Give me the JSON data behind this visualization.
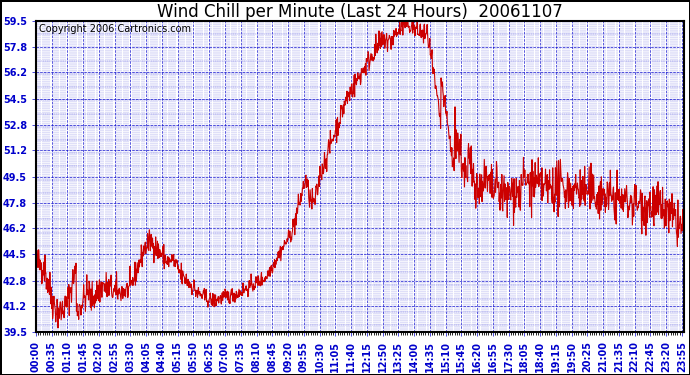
{
  "title": "Wind Chill per Minute (Last 24 Hours)  20061107",
  "copyright_text": "Copyright 2006 Cartronics.com",
  "line_color": "#cc0000",
  "background_color": "#ffffff",
  "plot_bg_color": "#ffffff",
  "border_color": "#000000",
  "grid_color": "#0000cc",
  "text_color": "#0000cc",
  "copyright_color": "#000000",
  "title_color": "#000000",
  "ylim": [
    39.5,
    59.5
  ],
  "yticks": [
    39.5,
    41.2,
    42.8,
    44.5,
    46.2,
    47.8,
    49.5,
    51.2,
    52.8,
    54.5,
    56.2,
    57.8,
    59.5
  ],
  "title_fontsize": 12,
  "copyright_fontsize": 7,
  "tick_fontsize": 7,
  "line_width": 0.8
}
